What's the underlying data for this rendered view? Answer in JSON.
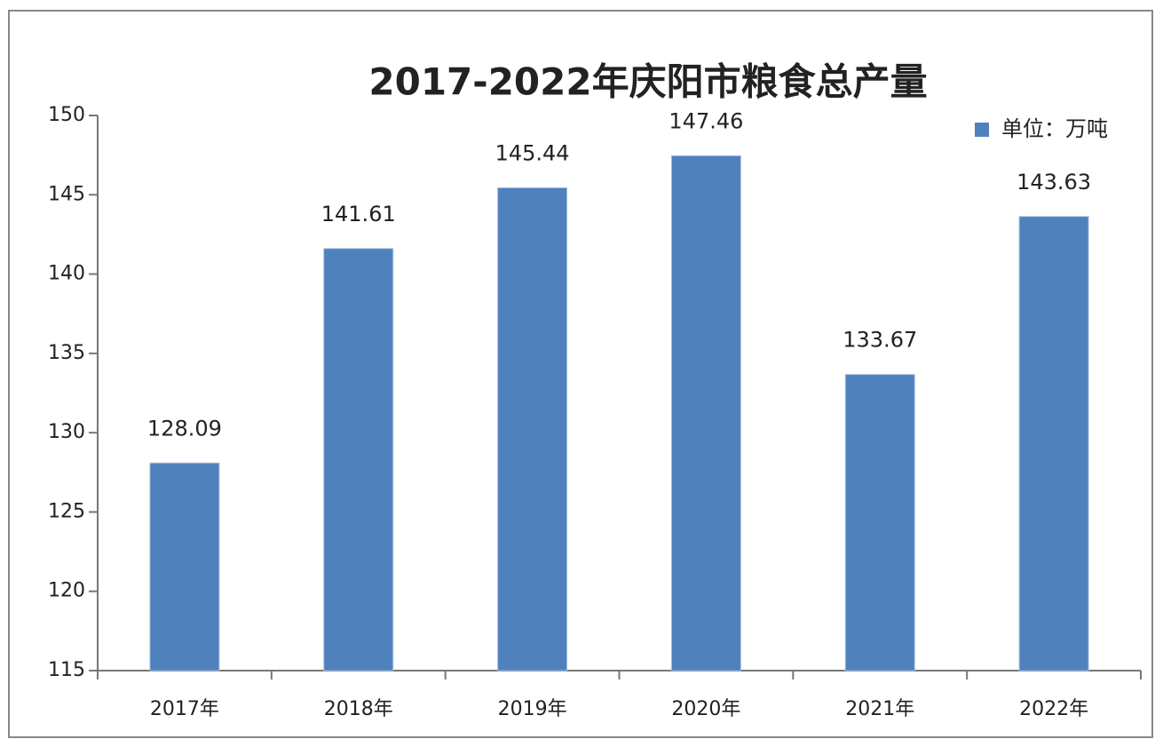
{
  "chart_data": {
    "type": "bar",
    "title": "2017-2022年庆阳市粮食总产量",
    "categories": [
      "2017年",
      "2018年",
      "2019年",
      "2020年",
      "2021年",
      "2022年"
    ],
    "series": [
      {
        "name": "单位：万吨",
        "color": "#4f81bd",
        "values": [
          128.09,
          141.61,
          145.44,
          147.46,
          133.67,
          143.63
        ]
      }
    ],
    "ylim": [
      115,
      150
    ],
    "yticks": [
      115,
      120,
      125,
      130,
      135,
      140,
      145,
      150
    ],
    "grid": false,
    "legend": "top-right"
  }
}
